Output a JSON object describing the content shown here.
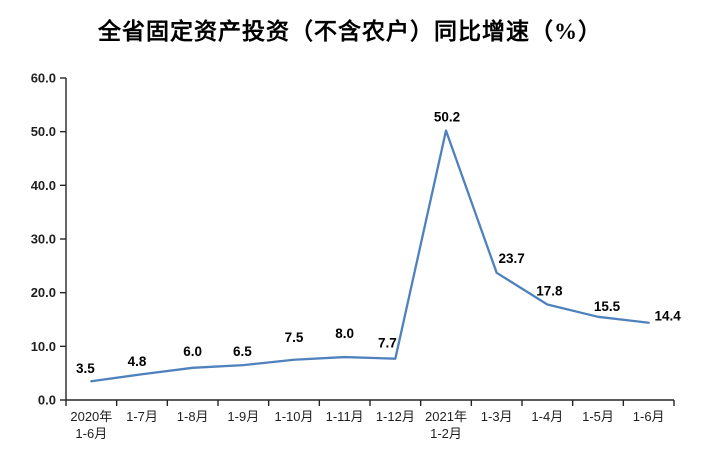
{
  "title": "全省固定资产投资（不含农户）同比增速（%）",
  "chart_data": {
    "type": "line",
    "title": "全省固定资产投资（不含农户）同比增速（%）",
    "categories": [
      "2020年\n1-6月",
      "1-7月",
      "1-8月",
      "1-9月",
      "1-10月",
      "1-11月",
      "1-12月",
      "2021年\n1-2月",
      "1-3月",
      "1-4月",
      "1-5月",
      "1-6月"
    ],
    "values": [
      3.5,
      4.8,
      6.0,
      6.5,
      7.5,
      8.0,
      7.7,
      50.2,
      23.7,
      17.8,
      15.5,
      14.4
    ],
    "data_labels": [
      "3.5",
      "4.8",
      "6.0",
      "6.5",
      "7.5",
      "8.0",
      "7.7",
      "50.2",
      "23.7",
      "17.8",
      "15.5",
      "14.4"
    ],
    "yticks": [
      "0.0",
      "10.0",
      "20.0",
      "30.0",
      "40.0",
      "50.0",
      "60.0"
    ],
    "ylim": [
      0,
      60
    ],
    "ytick_step": 10,
    "xlabel": "",
    "ylabel": "",
    "grid": "off",
    "legend": "none",
    "line_color": "#4F81BD",
    "axis_color": "#262626",
    "label_color": "#000000",
    "tick_label_color": "#1f1f1f"
  }
}
